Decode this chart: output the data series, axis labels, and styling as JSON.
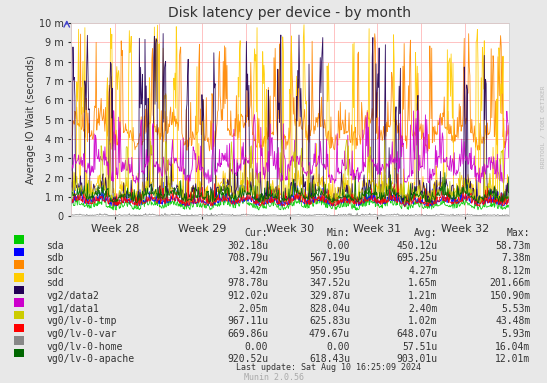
{
  "title": "Disk latency per device - by month",
  "ylabel": "Average IO Wait (seconds)",
  "xlabel_ticks": [
    "Week 28",
    "Week 29",
    "Week 30",
    "Week 31",
    "Week 32"
  ],
  "ylim": [
    0,
    0.01
  ],
  "ytick_labels": [
    "0",
    "1 m",
    "2 m",
    "3 m",
    "4 m",
    "5 m",
    "6 m",
    "7 m",
    "8 m",
    "9 m",
    "10 m"
  ],
  "ytick_vals": [
    0,
    0.001,
    0.002,
    0.003,
    0.004,
    0.005,
    0.006,
    0.007,
    0.008,
    0.009,
    0.01
  ],
  "background_color": "#e8e8e8",
  "plot_bg_color": "#ffffff",
  "title_color": "#333333",
  "series": [
    {
      "label": "sda",
      "color": "#00cc00",
      "avg": 0.00045,
      "amplitude": 0.0002,
      "noise": 0.0002
    },
    {
      "label": "sdb",
      "color": "#0000ff",
      "avg": 0.00065,
      "amplitude": 0.0002,
      "noise": 0.0002
    },
    {
      "label": "sdc",
      "color": "#ff8800",
      "avg": 0.004,
      "amplitude": 0.001,
      "noise": 0.0005
    },
    {
      "label": "sdd",
      "color": "#ffcc00",
      "avg": 0.0012,
      "amplitude": 0.0006,
      "noise": 0.0003
    },
    {
      "label": "vg2/data2",
      "color": "#220055",
      "avg": 0.001,
      "amplitude": 0.0005,
      "noise": 0.0003
    },
    {
      "label": "vg1/data1",
      "color": "#cc00cc",
      "avg": 0.0022,
      "amplitude": 0.0008,
      "noise": 0.0004
    },
    {
      "label": "vg0/lv-0-tmp",
      "color": "#cccc00",
      "avg": 0.0009,
      "amplitude": 0.0004,
      "noise": 0.0003
    },
    {
      "label": "vg0/lv-0-var",
      "color": "#ff0000",
      "avg": 0.00065,
      "amplitude": 0.0002,
      "noise": 0.0002
    },
    {
      "label": "vg0/lv-0-home",
      "color": "#888888",
      "avg": 5e-05,
      "amplitude": 3e-05,
      "noise": 2e-05
    },
    {
      "label": "vg0/lv-0-apache",
      "color": "#006600",
      "avg": 0.0009,
      "amplitude": 0.0003,
      "noise": 0.0002
    }
  ],
  "legend_table": {
    "headers": [
      "Cur:",
      "Min:",
      "Avg:",
      "Max:"
    ],
    "rows": [
      [
        "sda",
        "302.18u",
        "0.00",
        "450.12u",
        "58.73m"
      ],
      [
        "sdb",
        "708.79u",
        "567.19u",
        "695.25u",
        "7.38m"
      ],
      [
        "sdc",
        "3.42m",
        "950.95u",
        "4.27m",
        "8.12m"
      ],
      [
        "sdd",
        "978.78u",
        "347.52u",
        "1.65m",
        "201.66m"
      ],
      [
        "vg2/data2",
        "912.02u",
        "329.87u",
        "1.21m",
        "150.90m"
      ],
      [
        "vg1/data1",
        "2.05m",
        "828.04u",
        "2.40m",
        "5.53m"
      ],
      [
        "vg0/lv-0-tmp",
        "967.11u",
        "625.83u",
        "1.02m",
        "43.48m"
      ],
      [
        "vg0/lv-0-var",
        "669.86u",
        "479.67u",
        "648.07u",
        "5.93m"
      ],
      [
        "vg0/lv-0-home",
        "0.00",
        "0.00",
        "57.51u",
        "16.04m"
      ],
      [
        "vg0/lv-0-apache",
        "920.52u",
        "618.43u",
        "903.01u",
        "12.01m"
      ]
    ]
  },
  "footer": "Last update: Sat Aug 10 16:25:09 2024",
  "munin_label": "Munin 2.0.56",
  "rrdtool_label": "RRDTOOL / TOBI OETIKER"
}
